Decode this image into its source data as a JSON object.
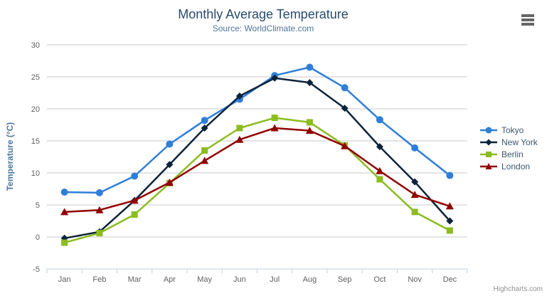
{
  "header": {
    "title": "Monthly Average Temperature",
    "subtitle": "Source: WorldClimate.com"
  },
  "icons": {
    "context_menu": "hamburger-icon"
  },
  "credits": {
    "label": "Highcharts.com"
  },
  "chart_data": {
    "type": "line",
    "title": "Monthly Average Temperature",
    "subtitle": "Source: WorldClimate.com",
    "categories": [
      "Jan",
      "Feb",
      "Mar",
      "Apr",
      "May",
      "Jun",
      "Jul",
      "Aug",
      "Sep",
      "Oct",
      "Nov",
      "Dec"
    ],
    "series": [
      {
        "name": "Tokyo",
        "color": "#2f7ed8",
        "marker": "circle",
        "values": [
          7.0,
          6.9,
          9.5,
          14.5,
          18.2,
          21.5,
          25.2,
          26.5,
          23.3,
          18.3,
          13.9,
          9.6
        ]
      },
      {
        "name": "New York",
        "color": "#0d233a",
        "marker": "diamond",
        "values": [
          -0.2,
          0.8,
          5.7,
          11.3,
          17.0,
          22.0,
          24.8,
          24.1,
          20.1,
          14.1,
          8.6,
          2.5
        ]
      },
      {
        "name": "Berlin",
        "color": "#8bbc21",
        "marker": "square",
        "values": [
          -0.9,
          0.6,
          3.5,
          8.4,
          13.5,
          17.0,
          18.6,
          17.9,
          14.3,
          9.0,
          3.9,
          1.0
        ]
      },
      {
        "name": "London",
        "color": "#910000",
        "marker": "triangle",
        "values": [
          3.9,
          4.2,
          5.7,
          8.5,
          11.9,
          15.2,
          17.0,
          16.6,
          14.2,
          10.3,
          6.6,
          4.8
        ]
      }
    ],
    "xlabel": "",
    "ylabel": "Temperature (°C)",
    "ylim": [
      -5,
      30
    ],
    "ytick_step": 5,
    "grid": true,
    "legend_position": "right",
    "colors": {
      "gridline": "#C8C8C8",
      "axis_line": "#C0D0E0",
      "tick_label": "#606060",
      "title": "#274b6d",
      "subtitle": "#4d759e",
      "legend_text": "#3E576F"
    }
  }
}
